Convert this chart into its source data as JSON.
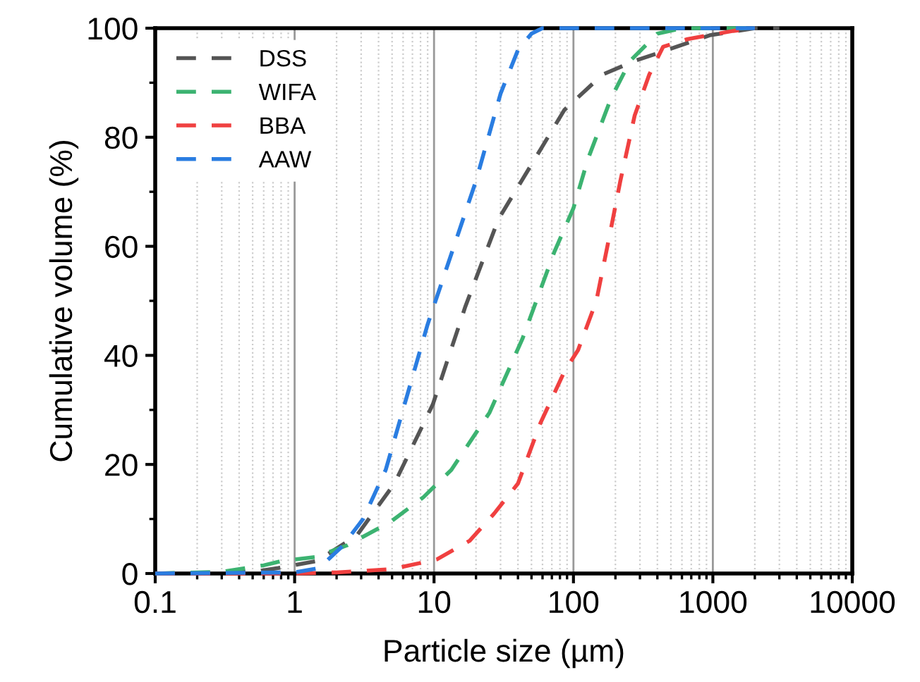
{
  "chart_data": {
    "type": "line",
    "xlabel": "Particle size (µm)",
    "ylabel": "Cumulative volume (%)",
    "log": "x",
    "xlim": [
      0.1,
      10000
    ],
    "xticks": [
      0.1,
      1,
      10,
      100,
      1000,
      10000
    ],
    "ylim": [
      0,
      100
    ],
    "yticks": [
      0,
      20,
      40,
      60,
      80,
      100
    ],
    "grid": "x",
    "legend": "top left",
    "line_style": "dashed",
    "marker": "none",
    "series": [
      {
        "name": "DSS",
        "color": "#555555",
        "x": [
          0.1,
          0.5,
          0.76,
          1.45,
          2.8,
          5.2,
          9.8,
          16.8,
          29,
          50,
          86,
          162,
          275,
          470,
          950,
          2000,
          3000
        ],
        "values": [
          0,
          0.3,
          1,
          2.3,
          7,
          16.5,
          31,
          49,
          65,
          75,
          85,
          91.5,
          94,
          96,
          98.7,
          100,
          100
        ]
      },
      {
        "name": "WIFA",
        "color": "#3cb371",
        "x": [
          0.1,
          0.3,
          0.6,
          0.81,
          1.4,
          2.4,
          4.9,
          8.4,
          13.3,
          25,
          43,
          73,
          100,
          127,
          185,
          255,
          400,
          600,
          2000
        ],
        "values": [
          0,
          0.3,
          1.5,
          2.3,
          3,
          5.2,
          9.5,
          14,
          19,
          29.5,
          43,
          59,
          67,
          76,
          87,
          94,
          99,
          100,
          100
        ]
      },
      {
        "name": "BBA",
        "color": "#f04040",
        "x": [
          0.1,
          1,
          2,
          5,
          10.5,
          18,
          27,
          40,
          58,
          86,
          108,
          146,
          185,
          217,
          275,
          350,
          440,
          660,
          1400,
          2000
        ],
        "values": [
          0,
          0,
          0.2,
          0.8,
          2.6,
          6,
          11,
          16.5,
          27.6,
          37,
          41,
          50,
          63,
          72,
          84,
          91.5,
          96.6,
          98,
          99.5,
          100
        ]
      },
      {
        "name": "AAW",
        "color": "#2a7de1",
        "x": [
          0.1,
          1,
          1.5,
          2.2,
          3.1,
          4.5,
          9,
          20,
          30,
          40,
          50,
          60,
          100,
          1000,
          2000
        ],
        "values": [
          0,
          0.2,
          1,
          5,
          10,
          19,
          45.7,
          72,
          88,
          96,
          99,
          100,
          100,
          100,
          100
        ]
      }
    ]
  }
}
